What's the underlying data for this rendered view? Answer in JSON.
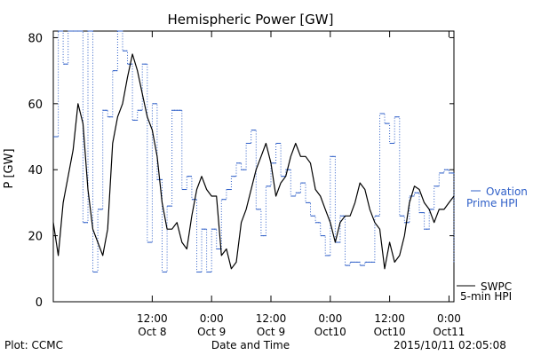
{
  "chart_data": {
    "type": "line",
    "title": "Hemispheric Power [GW]",
    "xlabel": "Date and Time",
    "ylabel": "P [GW]",
    "ylim": [
      0,
      82
    ],
    "xlim": [
      "2015-10-07T16:00",
      "2015-10-11T01:00"
    ],
    "yticks": [
      0,
      20,
      40,
      60,
      80
    ],
    "ytick_labels": [
      "0",
      "20",
      "40",
      "60",
      "80"
    ],
    "xticks": [
      {
        "time": "2015-10-08T12:00",
        "line1": "12:00",
        "line2": "Oct 8"
      },
      {
        "time": "2015-10-09T00:00",
        "line1": "0:00",
        "line2": "Oct 9"
      },
      {
        "time": "2015-10-09T12:00",
        "line1": "12:00",
        "line2": "Oct 9"
      },
      {
        "time": "2015-10-10T00:00",
        "line1": "0:00",
        "line2": "Oct10"
      },
      {
        "time": "2015-10-10T12:00",
        "line1": "12:00",
        "line2": "Oct10"
      },
      {
        "time": "2015-10-11T00:00",
        "line1": "0:00",
        "line2": "Oct11"
      }
    ],
    "grid": false,
    "legend_position": "right",
    "series": [
      {
        "name": "SWPC 5-min HPI",
        "color": "#000000",
        "style": "solid",
        "x": [
          "2015-10-07T16:00",
          "2015-10-07T17:00",
          "2015-10-07T18:00",
          "2015-10-07T19:00",
          "2015-10-07T20:00",
          "2015-10-07T21:00",
          "2015-10-07T22:00",
          "2015-10-07T23:00",
          "2015-10-08T00:00",
          "2015-10-08T01:00",
          "2015-10-08T02:00",
          "2015-10-08T03:00",
          "2015-10-08T04:00",
          "2015-10-08T05:00",
          "2015-10-08T06:00",
          "2015-10-08T07:00",
          "2015-10-08T08:00",
          "2015-10-08T09:00",
          "2015-10-08T10:00",
          "2015-10-08T11:00",
          "2015-10-08T12:00",
          "2015-10-08T13:00",
          "2015-10-08T14:00",
          "2015-10-08T15:00",
          "2015-10-08T16:00",
          "2015-10-08T17:00",
          "2015-10-08T18:00",
          "2015-10-08T19:00",
          "2015-10-08T20:00",
          "2015-10-08T21:00",
          "2015-10-08T22:00",
          "2015-10-08T23:00",
          "2015-10-09T00:00",
          "2015-10-09T01:00",
          "2015-10-09T02:00",
          "2015-10-09T03:00",
          "2015-10-09T04:00",
          "2015-10-09T05:00",
          "2015-10-09T06:00",
          "2015-10-09T07:00",
          "2015-10-09T08:00",
          "2015-10-09T09:00",
          "2015-10-09T10:00",
          "2015-10-09T11:00",
          "2015-10-09T12:00",
          "2015-10-09T13:00",
          "2015-10-09T14:00",
          "2015-10-09T15:00",
          "2015-10-09T16:00",
          "2015-10-09T17:00",
          "2015-10-09T18:00",
          "2015-10-09T19:00",
          "2015-10-09T20:00",
          "2015-10-09T21:00",
          "2015-10-09T22:00",
          "2015-10-09T23:00",
          "2015-10-10T00:00",
          "2015-10-10T01:00",
          "2015-10-10T02:00",
          "2015-10-10T03:00",
          "2015-10-10T04:00",
          "2015-10-10T05:00",
          "2015-10-10T06:00",
          "2015-10-10T07:00",
          "2015-10-10T08:00",
          "2015-10-10T09:00",
          "2015-10-10T10:00",
          "2015-10-10T11:00",
          "2015-10-10T12:00",
          "2015-10-10T13:00",
          "2015-10-10T14:00",
          "2015-10-10T15:00",
          "2015-10-10T16:00",
          "2015-10-10T17:00",
          "2015-10-10T18:00",
          "2015-10-10T19:00",
          "2015-10-10T20:00",
          "2015-10-10T21:00",
          "2015-10-10T22:00",
          "2015-10-10T23:00",
          "2015-10-11T00:00",
          "2015-10-11T01:00"
        ],
        "values": [
          24,
          14,
          30,
          38,
          46,
          60,
          54,
          34,
          22,
          18,
          14,
          22,
          48,
          56,
          60,
          68,
          75,
          70,
          63,
          56,
          52,
          44,
          30,
          22,
          22,
          24,
          18,
          16,
          26,
          34,
          38,
          34,
          32,
          32,
          14,
          16,
          10,
          12,
          24,
          28,
          34,
          40,
          44,
          48,
          42,
          32,
          36,
          38,
          44,
          48,
          44,
          44,
          42,
          34,
          32,
          28,
          24,
          18,
          24,
          26,
          26,
          30,
          36,
          34,
          28,
          24,
          22,
          10,
          18,
          12,
          14,
          20,
          30,
          35,
          34,
          30,
          28,
          24,
          28,
          28,
          30,
          32
        ]
      },
      {
        "name": "Ovation Prime HPI",
        "color": "#3060c8",
        "style": "dotted-step",
        "x": [
          "2015-10-07T16:00",
          "2015-10-07T17:00",
          "2015-10-07T18:00",
          "2015-10-07T19:00",
          "2015-10-07T20:00",
          "2015-10-07T21:00",
          "2015-10-07T22:00",
          "2015-10-07T23:00",
          "2015-10-08T00:00",
          "2015-10-08T01:00",
          "2015-10-08T02:00",
          "2015-10-08T03:00",
          "2015-10-08T04:00",
          "2015-10-08T05:00",
          "2015-10-08T06:00",
          "2015-10-08T07:00",
          "2015-10-08T08:00",
          "2015-10-08T09:00",
          "2015-10-08T10:00",
          "2015-10-08T11:00",
          "2015-10-08T12:00",
          "2015-10-08T13:00",
          "2015-10-08T14:00",
          "2015-10-08T15:00",
          "2015-10-08T16:00",
          "2015-10-08T17:00",
          "2015-10-08T18:00",
          "2015-10-08T19:00",
          "2015-10-08T20:00",
          "2015-10-08T21:00",
          "2015-10-08T22:00",
          "2015-10-08T23:00",
          "2015-10-09T00:00",
          "2015-10-09T01:00",
          "2015-10-09T02:00",
          "2015-10-09T03:00",
          "2015-10-09T04:00",
          "2015-10-09T05:00",
          "2015-10-09T06:00",
          "2015-10-09T07:00",
          "2015-10-09T08:00",
          "2015-10-09T09:00",
          "2015-10-09T10:00",
          "2015-10-09T11:00",
          "2015-10-09T12:00",
          "2015-10-09T13:00",
          "2015-10-09T14:00",
          "2015-10-09T15:00",
          "2015-10-09T16:00",
          "2015-10-09T17:00",
          "2015-10-09T18:00",
          "2015-10-09T19:00",
          "2015-10-09T20:00",
          "2015-10-09T21:00",
          "2015-10-09T22:00",
          "2015-10-09T23:00",
          "2015-10-10T00:00",
          "2015-10-10T01:00",
          "2015-10-10T02:00",
          "2015-10-10T03:00",
          "2015-10-10T04:00",
          "2015-10-10T05:00",
          "2015-10-10T06:00",
          "2015-10-10T07:00",
          "2015-10-10T08:00",
          "2015-10-10T09:00",
          "2015-10-10T10:00",
          "2015-10-10T11:00",
          "2015-10-10T12:00",
          "2015-10-10T13:00",
          "2015-10-10T14:00",
          "2015-10-10T15:00",
          "2015-10-10T16:00",
          "2015-10-10T17:00",
          "2015-10-10T18:00",
          "2015-10-10T19:00",
          "2015-10-10T20:00",
          "2015-10-10T21:00",
          "2015-10-10T22:00",
          "2015-10-10T23:00",
          "2015-10-11T00:00",
          "2015-10-11T01:00"
        ],
        "values": [
          50,
          82,
          72,
          82,
          82,
          82,
          24,
          82,
          9,
          28,
          58,
          56,
          70,
          82,
          76,
          72,
          55,
          58,
          72,
          18,
          60,
          37,
          9,
          29,
          58,
          58,
          34,
          38,
          31,
          9,
          22,
          9,
          22,
          16,
          31,
          34,
          38,
          42,
          40,
          48,
          52,
          28,
          20,
          35,
          42,
          48,
          38,
          40,
          32,
          33,
          36,
          30,
          26,
          24,
          20,
          14,
          44,
          18,
          26,
          11,
          12,
          12,
          11,
          12,
          12,
          26,
          57,
          54,
          48,
          56,
          26,
          24,
          32,
          33,
          27,
          22,
          28,
          35,
          39,
          40,
          39,
          12
        ]
      }
    ],
    "annotations": [
      "Plot: CCMC",
      "2015/10/11 02:05:08"
    ]
  },
  "legend": {
    "ovation_line1": "Ovation",
    "ovation_line2": "Prime HPI",
    "swpc_line1": "SWPC",
    "swpc_line2": "5-min HPI"
  },
  "footer": {
    "left": "Plot: CCMC",
    "center": "Date and Time",
    "right": "2015/10/11 02:05:08"
  },
  "colors": {
    "primary": "#000000",
    "accent": "#3060c8",
    "background": "#ffffff"
  }
}
